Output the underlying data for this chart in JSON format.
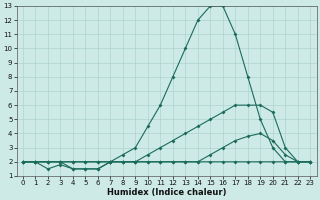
{
  "xlabel": "Humidex (Indice chaleur)",
  "background_color": "#ceeae6",
  "grid_color": "#aed4cf",
  "line_color": "#1a6b5a",
  "xlim": [
    -0.5,
    23.5
  ],
  "ylim": [
    1,
    13
  ],
  "xticks": [
    0,
    1,
    2,
    3,
    4,
    5,
    6,
    7,
    8,
    9,
    10,
    11,
    12,
    13,
    14,
    15,
    16,
    17,
    18,
    19,
    20,
    21,
    22,
    23
  ],
  "yticks": [
    1,
    2,
    3,
    4,
    5,
    6,
    7,
    8,
    9,
    10,
    11,
    12,
    13
  ],
  "line_peak_x": [
    0,
    1,
    2,
    3,
    4,
    5,
    6,
    7,
    8,
    9,
    10,
    11,
    12,
    13,
    14,
    15,
    16,
    17,
    18,
    19,
    20,
    21,
    22,
    23
  ],
  "line_peak_y": [
    2,
    2,
    2,
    2,
    1.5,
    1.5,
    1.5,
    2,
    2.5,
    3,
    4.5,
    6,
    8,
    10,
    12,
    13,
    13,
    11,
    8,
    5,
    3,
    2,
    2,
    2
  ],
  "line_med_x": [
    0,
    1,
    2,
    3,
    4,
    5,
    6,
    7,
    8,
    9,
    10,
    11,
    12,
    13,
    14,
    15,
    16,
    17,
    18,
    19,
    20,
    21,
    22,
    23
  ],
  "line_med_y": [
    2,
    2,
    2,
    2,
    2,
    2,
    2,
    2,
    2,
    2,
    2.5,
    3,
    3.5,
    4,
    4.5,
    5,
    5.5,
    6,
    6,
    6,
    5.5,
    3,
    2,
    2
  ],
  "line_low_x": [
    0,
    1,
    2,
    3,
    4,
    5,
    6,
    7,
    8,
    9,
    10,
    11,
    12,
    13,
    14,
    15,
    16,
    17,
    18,
    19,
    20,
    21,
    22,
    23
  ],
  "line_low_y": [
    2,
    2,
    1.5,
    1.8,
    1.5,
    1.5,
    1.5,
    2,
    2,
    2,
    2,
    2,
    2,
    2,
    2,
    2,
    2,
    2,
    2,
    2,
    2,
    2,
    2,
    2
  ],
  "line_flat_x": [
    0,
    1,
    2,
    3,
    4,
    5,
    6,
    7,
    8,
    9,
    10,
    11,
    12,
    13,
    14,
    15,
    16,
    17,
    18,
    19,
    20,
    21,
    22,
    23
  ],
  "line_flat_y": [
    2,
    2,
    2,
    2,
    2,
    2,
    2,
    2,
    2,
    2,
    2,
    2,
    2,
    2,
    2,
    2.5,
    3,
    3.5,
    3.8,
    4,
    3.5,
    2.5,
    2,
    2
  ]
}
